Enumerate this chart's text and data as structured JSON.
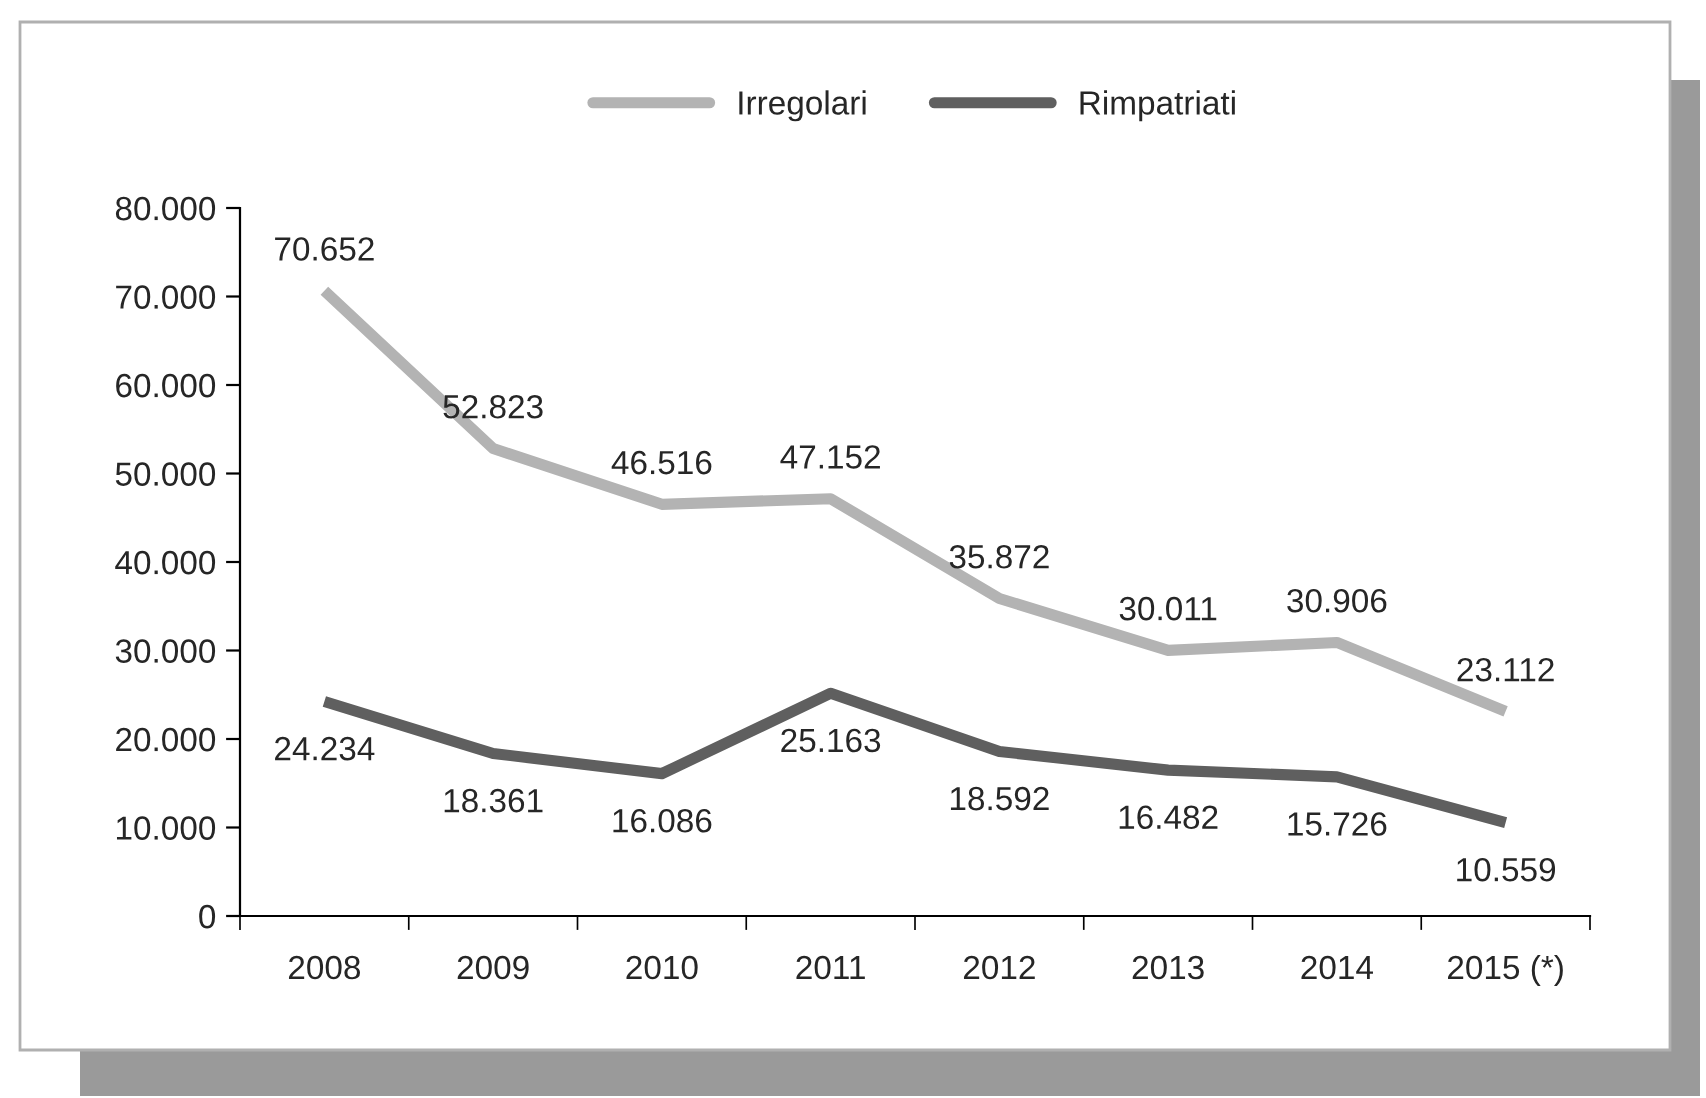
{
  "chart_data": {
    "type": "line",
    "categories": [
      "2008",
      "2009",
      "2010",
      "2011",
      "2012",
      "2013",
      "2014",
      "2015 (*)"
    ],
    "series": [
      {
        "name": "Irregolari",
        "color": "#b3b3b3",
        "values": [
          70652,
          52823,
          46516,
          47152,
          35872,
          30011,
          30906,
          23112
        ],
        "value_labels": [
          "70.652",
          "52.823",
          "46.516",
          "47.152",
          "35.872",
          "30.011",
          "30.906",
          "23.112"
        ]
      },
      {
        "name": "Rimpatriati",
        "color": "#5f5f5f",
        "values": [
          24234,
          18361,
          16086,
          25163,
          18592,
          16482,
          15726,
          10559
        ],
        "value_labels": [
          "24.234",
          "18.361",
          "16.086",
          "25.163",
          "18.592",
          "16.482",
          "15.726",
          "10.559"
        ]
      }
    ],
    "ylim": [
      0,
      80000
    ],
    "yticks": [
      0,
      {
        "value": 10000,
        "label": "10.000"
      },
      {
        "value": 20000,
        "label": "20.000"
      },
      {
        "value": 30000,
        "label": "30.000"
      },
      {
        "value": 40000,
        "label": "40.000"
      },
      {
        "value": 50000,
        "label": "50.000"
      },
      {
        "value": 60000,
        "label": "60.000"
      },
      {
        "value": 70000,
        "label": "70.000"
      },
      {
        "value": 80000,
        "label": "80.000"
      }
    ],
    "grid": false,
    "legend": "top",
    "marker": "none",
    "line_style": "solid"
  }
}
